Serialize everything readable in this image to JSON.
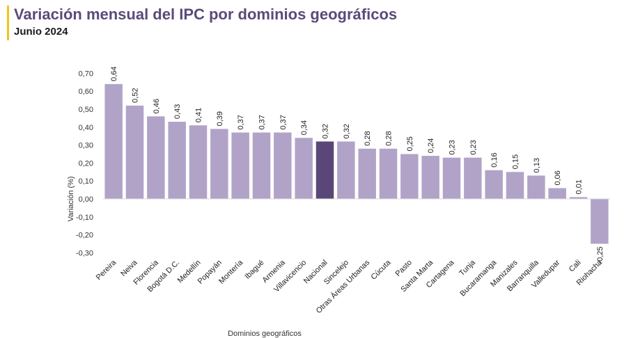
{
  "header": {
    "title": "Variación mensual del IPC por dominios geográficos",
    "subtitle": "Junio 2024"
  },
  "chart_data": {
    "type": "bar",
    "title": "Variación mensual del IPC por dominios geográficos",
    "subtitle": "Junio 2024",
    "xlabel": "Dominios geográficos",
    "ylabel": "Variación (%)",
    "ylim": [
      -0.3,
      0.7
    ],
    "yticks": [
      "-0,30",
      "-0,20",
      "-0,10",
      "0,00",
      "0,10",
      "0,20",
      "0,30",
      "0,40",
      "0,50",
      "0,60",
      "0,70"
    ],
    "grid": false,
    "categories": [
      "Pereira",
      "Neiva",
      "Florencia",
      "Bogotá D.C.",
      "Medellín",
      "Popayán",
      "Montería",
      "Ibagué",
      "Armenia",
      "Villavicencio",
      "Nacional",
      "Sincelejo",
      "Otras Áreas Urbanas",
      "Cúcuta",
      "Pasto",
      "Santa Marta",
      "Cartagena",
      "Tunja",
      "Bucaramanga",
      "Manizales",
      "Barranquilla",
      "Valledupar",
      "Cali",
      "Riohacha"
    ],
    "values": [
      0.64,
      0.52,
      0.46,
      0.43,
      0.41,
      0.39,
      0.37,
      0.37,
      0.37,
      0.34,
      0.32,
      0.32,
      0.28,
      0.28,
      0.25,
      0.24,
      0.23,
      0.23,
      0.16,
      0.15,
      0.13,
      0.06,
      0.01,
      -0.25
    ],
    "labels": [
      "0,64",
      "0,52",
      "0,46",
      "0,43",
      "0,41",
      "0,39",
      "0,37",
      "0,37",
      "0,37",
      "0,34",
      "0,32",
      "0,32",
      "0,28",
      "0,28",
      "0,25",
      "0,24",
      "0,23",
      "0,23",
      "0,16",
      "0,15",
      "0,13",
      "0,06",
      "0,01",
      "-0,25"
    ],
    "highlight_category": "Nacional",
    "colors": {
      "bar": "#b1a3c8",
      "highlight": "#5a4777"
    }
  }
}
